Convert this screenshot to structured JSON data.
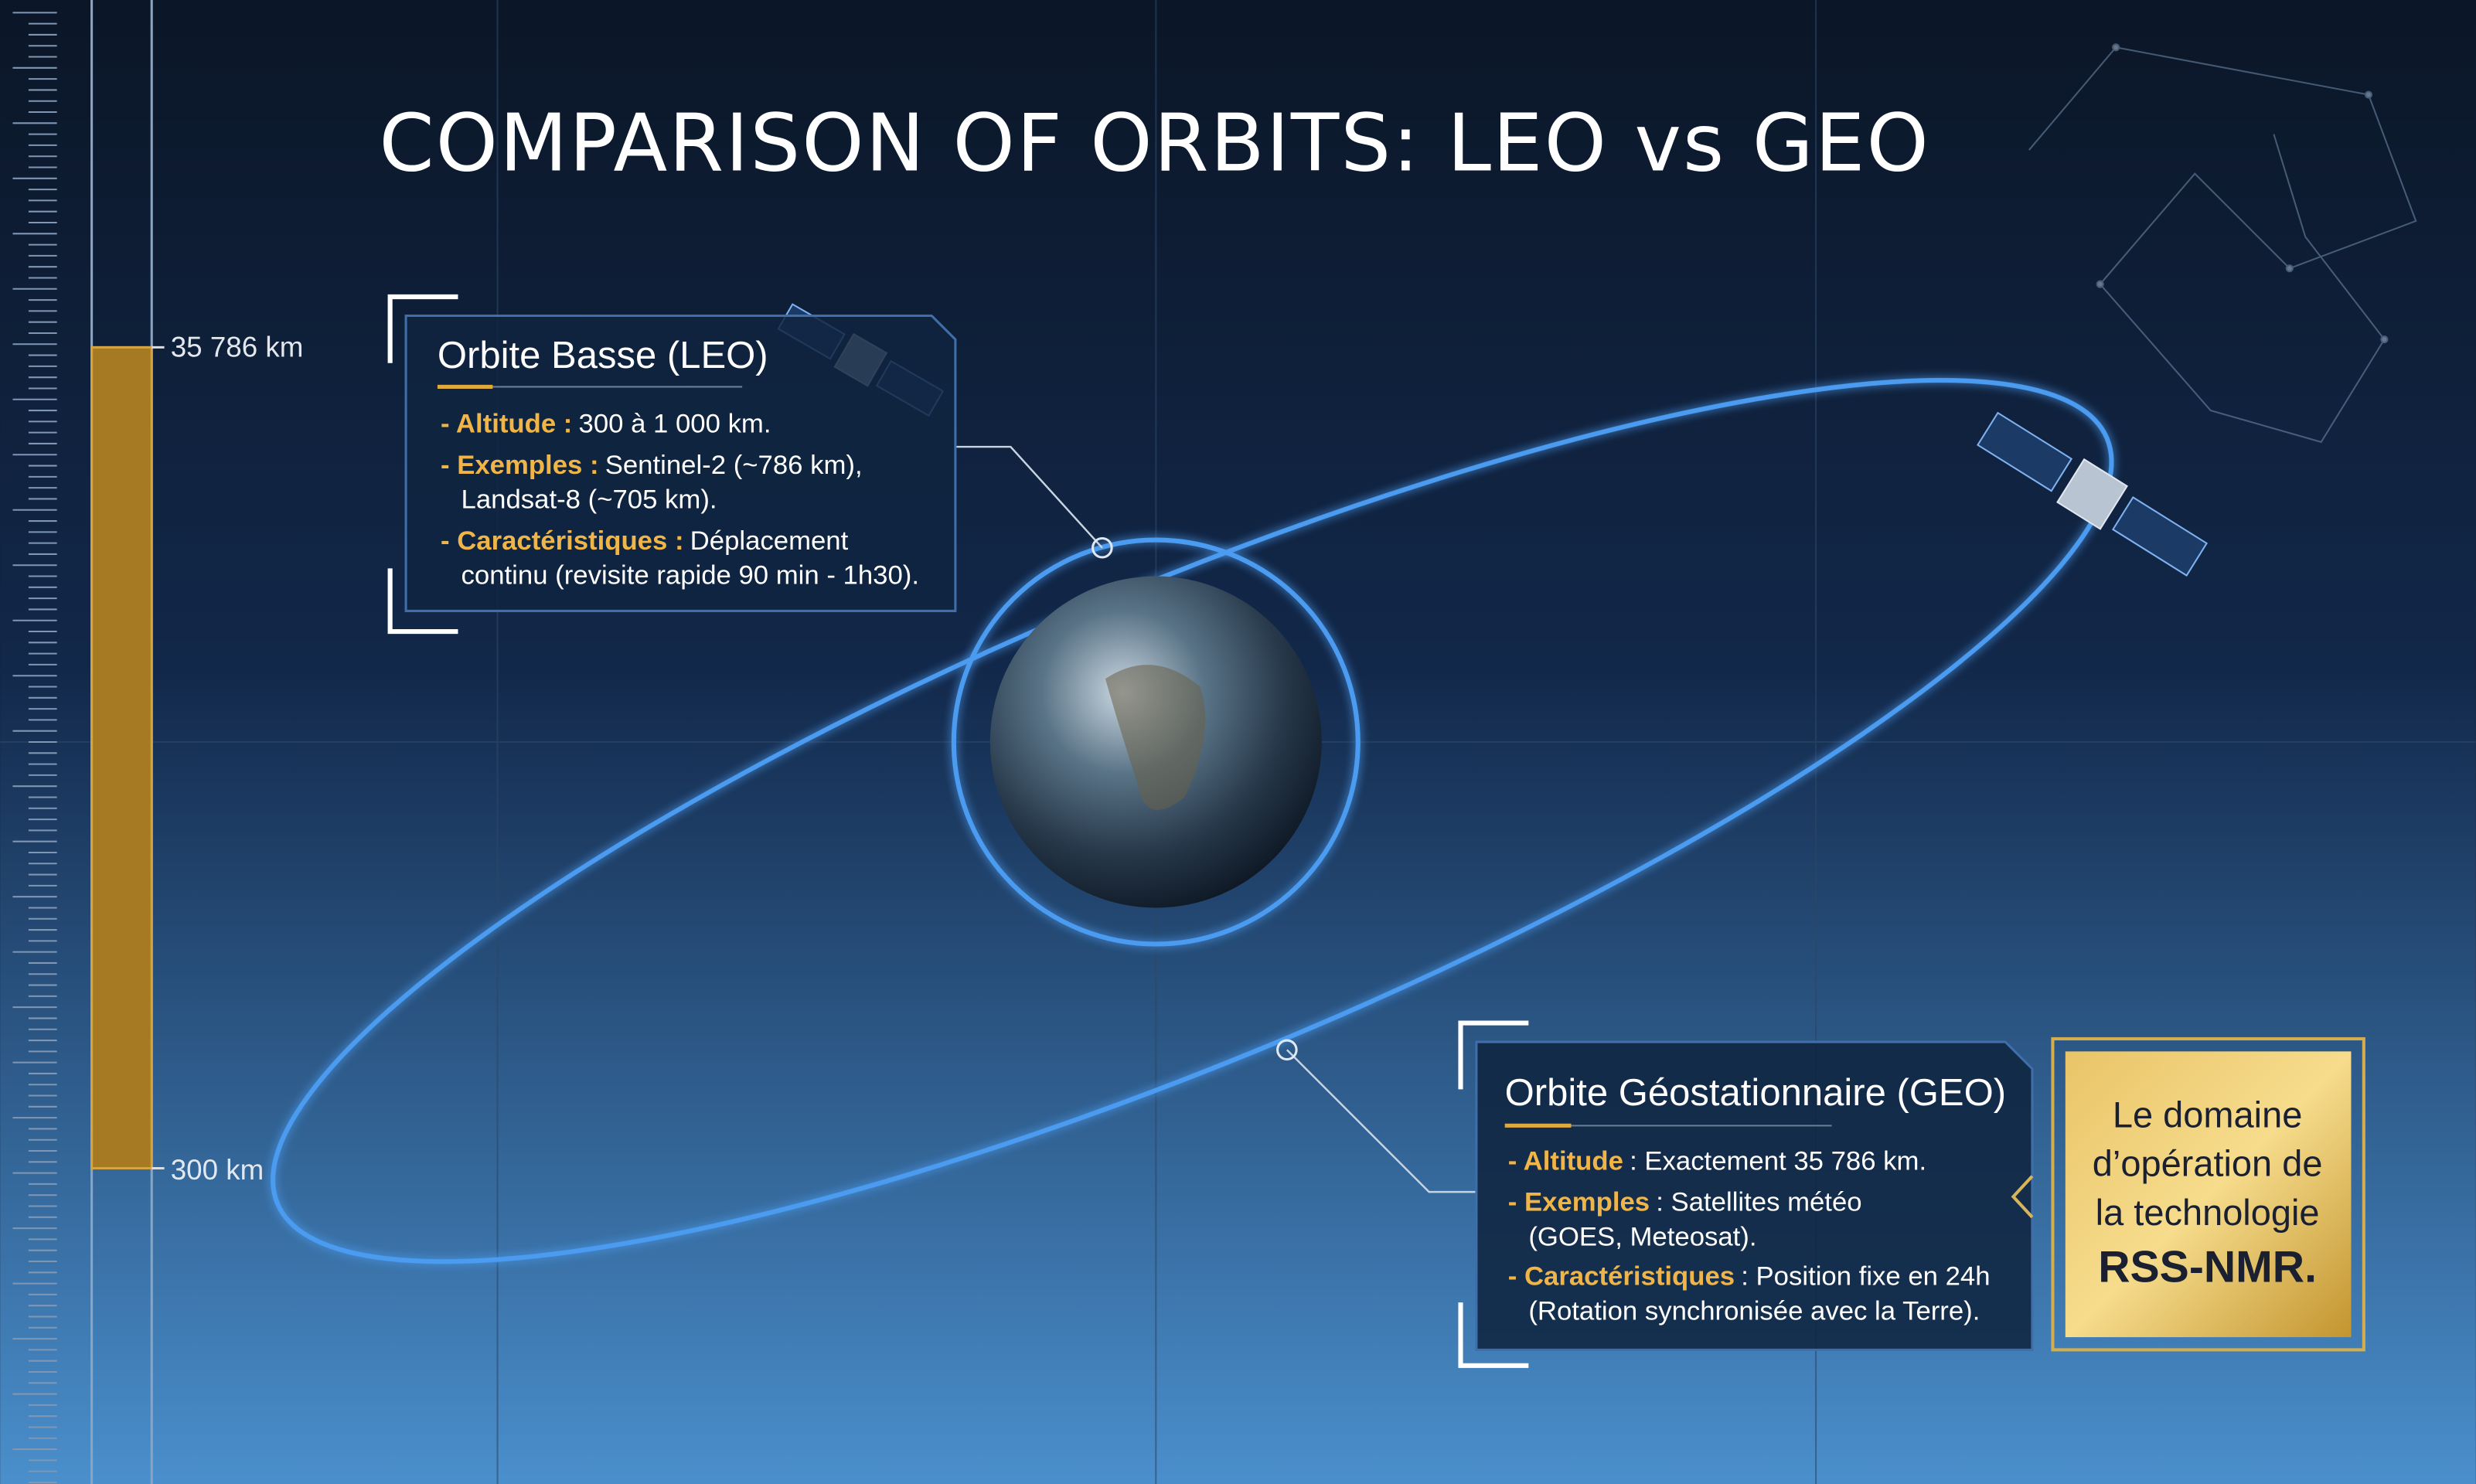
{
  "title": "COMPARISON OF ORBITS: LEO vs GEO",
  "altitude_scale": {
    "top_label": "35 786 km",
    "bottom_label": "300 km"
  },
  "leo": {
    "title": "Orbite Basse (LEO)",
    "items": [
      {
        "label": "- Altitude :",
        "lines": [
          "300 à 1 000 km."
        ]
      },
      {
        "label": "- Exemples :",
        "lines": [
          "Sentinel-2 (~786 km),",
          "Landsat-8 (~705 km)."
        ]
      },
      {
        "label": "- Caractéristiques :",
        "lines": [
          "Déplacement",
          "continu (revisite rapide 90 min - 1h30)."
        ]
      }
    ]
  },
  "geo": {
    "title": "Orbite Géostationnaire (GEO)",
    "items": [
      {
        "label": "- Altitude",
        "lines": [
          ": Exactement 35 786 km."
        ]
      },
      {
        "label": "- Exemples",
        "lines": [
          ": Satellites météo",
          "(GOES, Meteosat)."
        ]
      },
      {
        "label": "- Caractéristiques",
        "lines": [
          ": Position fixe en 24h",
          "(Rotation synchronisée avec la Terre)."
        ]
      }
    ]
  },
  "highlight": {
    "lines": [
      "Le domaine",
      "d’opération de",
      "la technologie"
    ],
    "emphasis": "RSS-NMR."
  }
}
